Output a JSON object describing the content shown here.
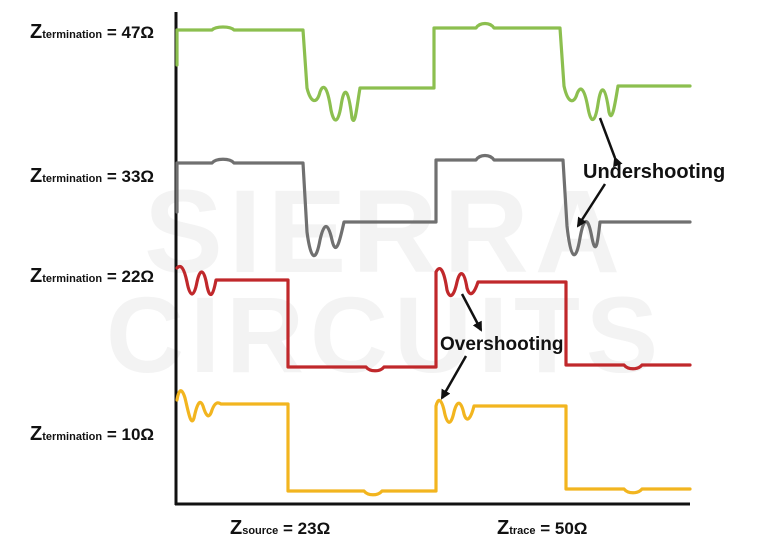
{
  "watermark": {
    "line1": "SIERRA",
    "line2": "CIRCUITS"
  },
  "labels": {
    "z47": {
      "main": "Z",
      "sub": "termination",
      "value": " = 47Ω"
    },
    "z33": {
      "main": "Z",
      "sub": "termination",
      "value": " = 33Ω"
    },
    "z22": {
      "main": "Z",
      "sub": "termination",
      "value": " = 22Ω"
    },
    "z10": {
      "main": "Z",
      "sub": "termination",
      "value": " = 10Ω"
    },
    "zsource": {
      "main": "Z",
      "sub": "source",
      "value": " = 23Ω"
    },
    "ztrace": {
      "main": "Z",
      "sub": "trace",
      "value": " = 50Ω"
    }
  },
  "annotations": {
    "undershooting": "Undershooting",
    "overshooting": "Overshooting"
  },
  "colors": {
    "z47": "#8cbf4f",
    "z33": "#707070",
    "z22": "#c0282b",
    "z10": "#f2b51f",
    "axis": "#111111"
  }
}
